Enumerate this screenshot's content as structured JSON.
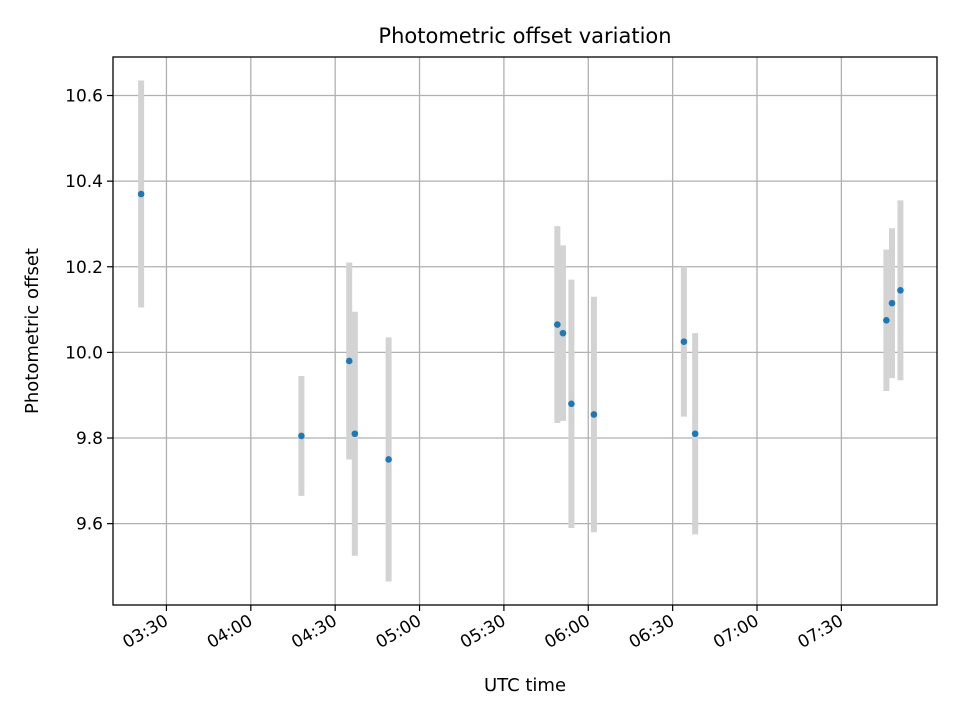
{
  "chart_data": {
    "type": "scatter",
    "title": "Photometric offset variation",
    "xlabel": "UTC time",
    "ylabel": "Photometric offset",
    "x_unit": "minutes",
    "xlim": [
      "03:11",
      "08:04"
    ],
    "ylim": [
      9.41,
      10.69
    ],
    "x_ticks": [
      "03:30",
      "04:00",
      "04:30",
      "05:00",
      "05:30",
      "06:00",
      "06:30",
      "07:00",
      "07:30"
    ],
    "y_ticks": [
      9.6,
      9.8,
      10.0,
      10.2,
      10.4,
      10.6
    ],
    "grid": true,
    "point_color": "#1f77b4",
    "errorbar_color": "#d3d3d3",
    "points": [
      {
        "x": "03:21",
        "y": 10.37,
        "yerr": 0.265
      },
      {
        "x": "04:18",
        "y": 9.805,
        "yerr": 0.14
      },
      {
        "x": "04:35",
        "y": 9.98,
        "yerr": 0.23
      },
      {
        "x": "04:37",
        "y": 9.81,
        "yerr": 0.285
      },
      {
        "x": "04:49",
        "y": 9.75,
        "yerr": 0.285
      },
      {
        "x": "05:49",
        "y": 10.065,
        "yerr": 0.23
      },
      {
        "x": "05:51",
        "y": 10.045,
        "yerr": 0.205
      },
      {
        "x": "05:54",
        "y": 9.88,
        "yerr": 0.29
      },
      {
        "x": "06:02",
        "y": 9.855,
        "yerr": 0.275
      },
      {
        "x": "06:34",
        "y": 10.025,
        "yerr": 0.175
      },
      {
        "x": "06:38",
        "y": 9.81,
        "yerr": 0.235
      },
      {
        "x": "07:46",
        "y": 10.075,
        "yerr": 0.165
      },
      {
        "x": "07:48",
        "y": 10.115,
        "yerr": 0.175
      },
      {
        "x": "07:51",
        "y": 10.145,
        "yerr": 0.21
      }
    ]
  }
}
